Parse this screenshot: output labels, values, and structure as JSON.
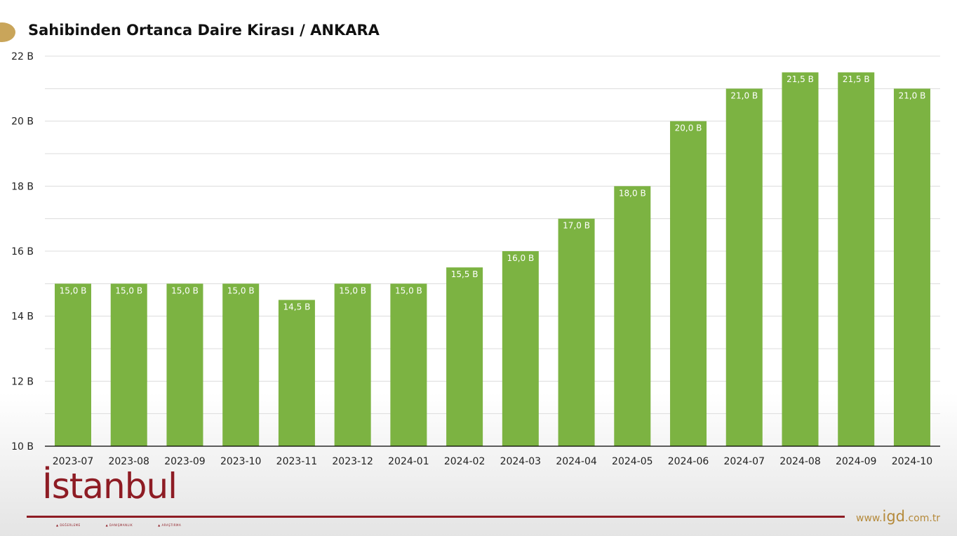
{
  "page": {
    "title": "Sahibinden Ortanca Daire Kirası / ANKARA"
  },
  "brand": {
    "logo_text": "İstanbul",
    "logo_subtitles": [
      "DEĞERLEME",
      "DANIŞMANLIK",
      "ARAŞTIRMA"
    ],
    "site_prefix": "www.",
    "site_main": "igd",
    "site_suffix": ".com.tr",
    "colors": {
      "logo": "#8e1c24",
      "site": "#b58a3b",
      "accent": "#c9a55a"
    }
  },
  "chart_data": {
    "type": "bar",
    "title": "Sahibinden Ortanca Daire Kirası / ANKARA",
    "xlabel": "",
    "ylabel": "",
    "ylim": [
      10,
      22
    ],
    "y_ticks": [
      10,
      12,
      14,
      16,
      18,
      20,
      22
    ],
    "y_tick_labels": [
      "10 B",
      "12 B",
      "14 B",
      "16 B",
      "18 B",
      "20 B",
      "22 B"
    ],
    "grid": true,
    "bar_color": "#7cb342",
    "categories": [
      "2023-07",
      "2023-08",
      "2023-09",
      "2023-10",
      "2023-11",
      "2023-12",
      "2024-01",
      "2024-02",
      "2024-03",
      "2024-04",
      "2024-05",
      "2024-06",
      "2024-07",
      "2024-08",
      "2024-09",
      "2024-10"
    ],
    "values": [
      15.0,
      15.0,
      15.0,
      15.0,
      14.5,
      15.0,
      15.0,
      15.5,
      16.0,
      17.0,
      18.0,
      20.0,
      21.0,
      21.5,
      21.5,
      21.0
    ],
    "data_labels": [
      "15,0 B",
      "15,0 B",
      "15,0 B",
      "15,0 B",
      "14,5 B",
      "15,0 B",
      "15,0 B",
      "15,5 B",
      "16,0 B",
      "17,0 B",
      "18,0 B",
      "20,0 B",
      "21,0 B",
      "21,5 B",
      "21,5 B",
      "21,0 B"
    ]
  }
}
